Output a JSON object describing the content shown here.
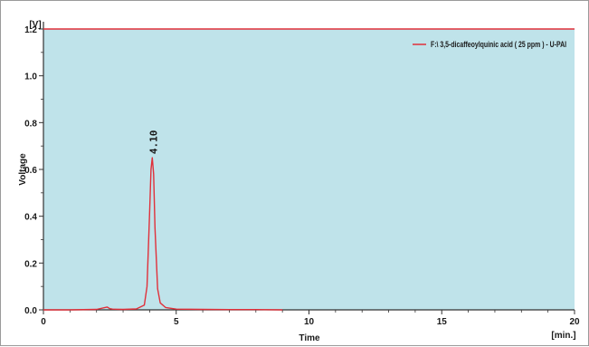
{
  "chart_data": {
    "type": "line",
    "title": "",
    "xlabel": "Time",
    "ylabel": "Voltage",
    "y_unit_label": "[V]",
    "x_unit_label": "[min.]",
    "xlim": [
      0,
      20
    ],
    "ylim": [
      0,
      1.2
    ],
    "x_ticks": [
      0,
      5,
      10,
      15,
      20
    ],
    "y_ticks": [
      0.0,
      0.2,
      0.4,
      0.6,
      0.8,
      1.0,
      1.2
    ],
    "x_tick_labels": [
      "0",
      "5",
      "10",
      "15",
      "20"
    ],
    "y_tick_labels": [
      "0.0",
      "0.2",
      "0.4",
      "0.6",
      "0.8",
      "1.0",
      "1.2"
    ],
    "grid": false,
    "legend_position": "top-right",
    "plot_background": "#bfe3ea",
    "series": [
      {
        "name": "F:\\ 3,5-dicaffeoylquinic acid ( 25 ppm ) - U-PAI",
        "color": "#e0303a",
        "x": [
          0.0,
          1.0,
          2.0,
          2.4,
          2.5,
          2.6,
          3.0,
          3.5,
          3.8,
          3.9,
          4.0,
          4.05,
          4.1,
          4.15,
          4.2,
          4.3,
          4.4,
          4.6,
          5.0,
          6.0,
          7.0,
          8.0,
          9.0
        ],
        "y": [
          0.0,
          0.0,
          0.002,
          0.012,
          0.005,
          0.003,
          0.002,
          0.004,
          0.02,
          0.1,
          0.42,
          0.6,
          0.65,
          0.58,
          0.35,
          0.09,
          0.03,
          0.01,
          0.003,
          0.002,
          0.001,
          0.001,
          0.0
        ]
      }
    ],
    "top_line": {
      "y": 1.2,
      "color": "#e0303a"
    },
    "annotations": [
      {
        "text": "4.10",
        "x": 4.1,
        "y": 0.65
      }
    ]
  }
}
